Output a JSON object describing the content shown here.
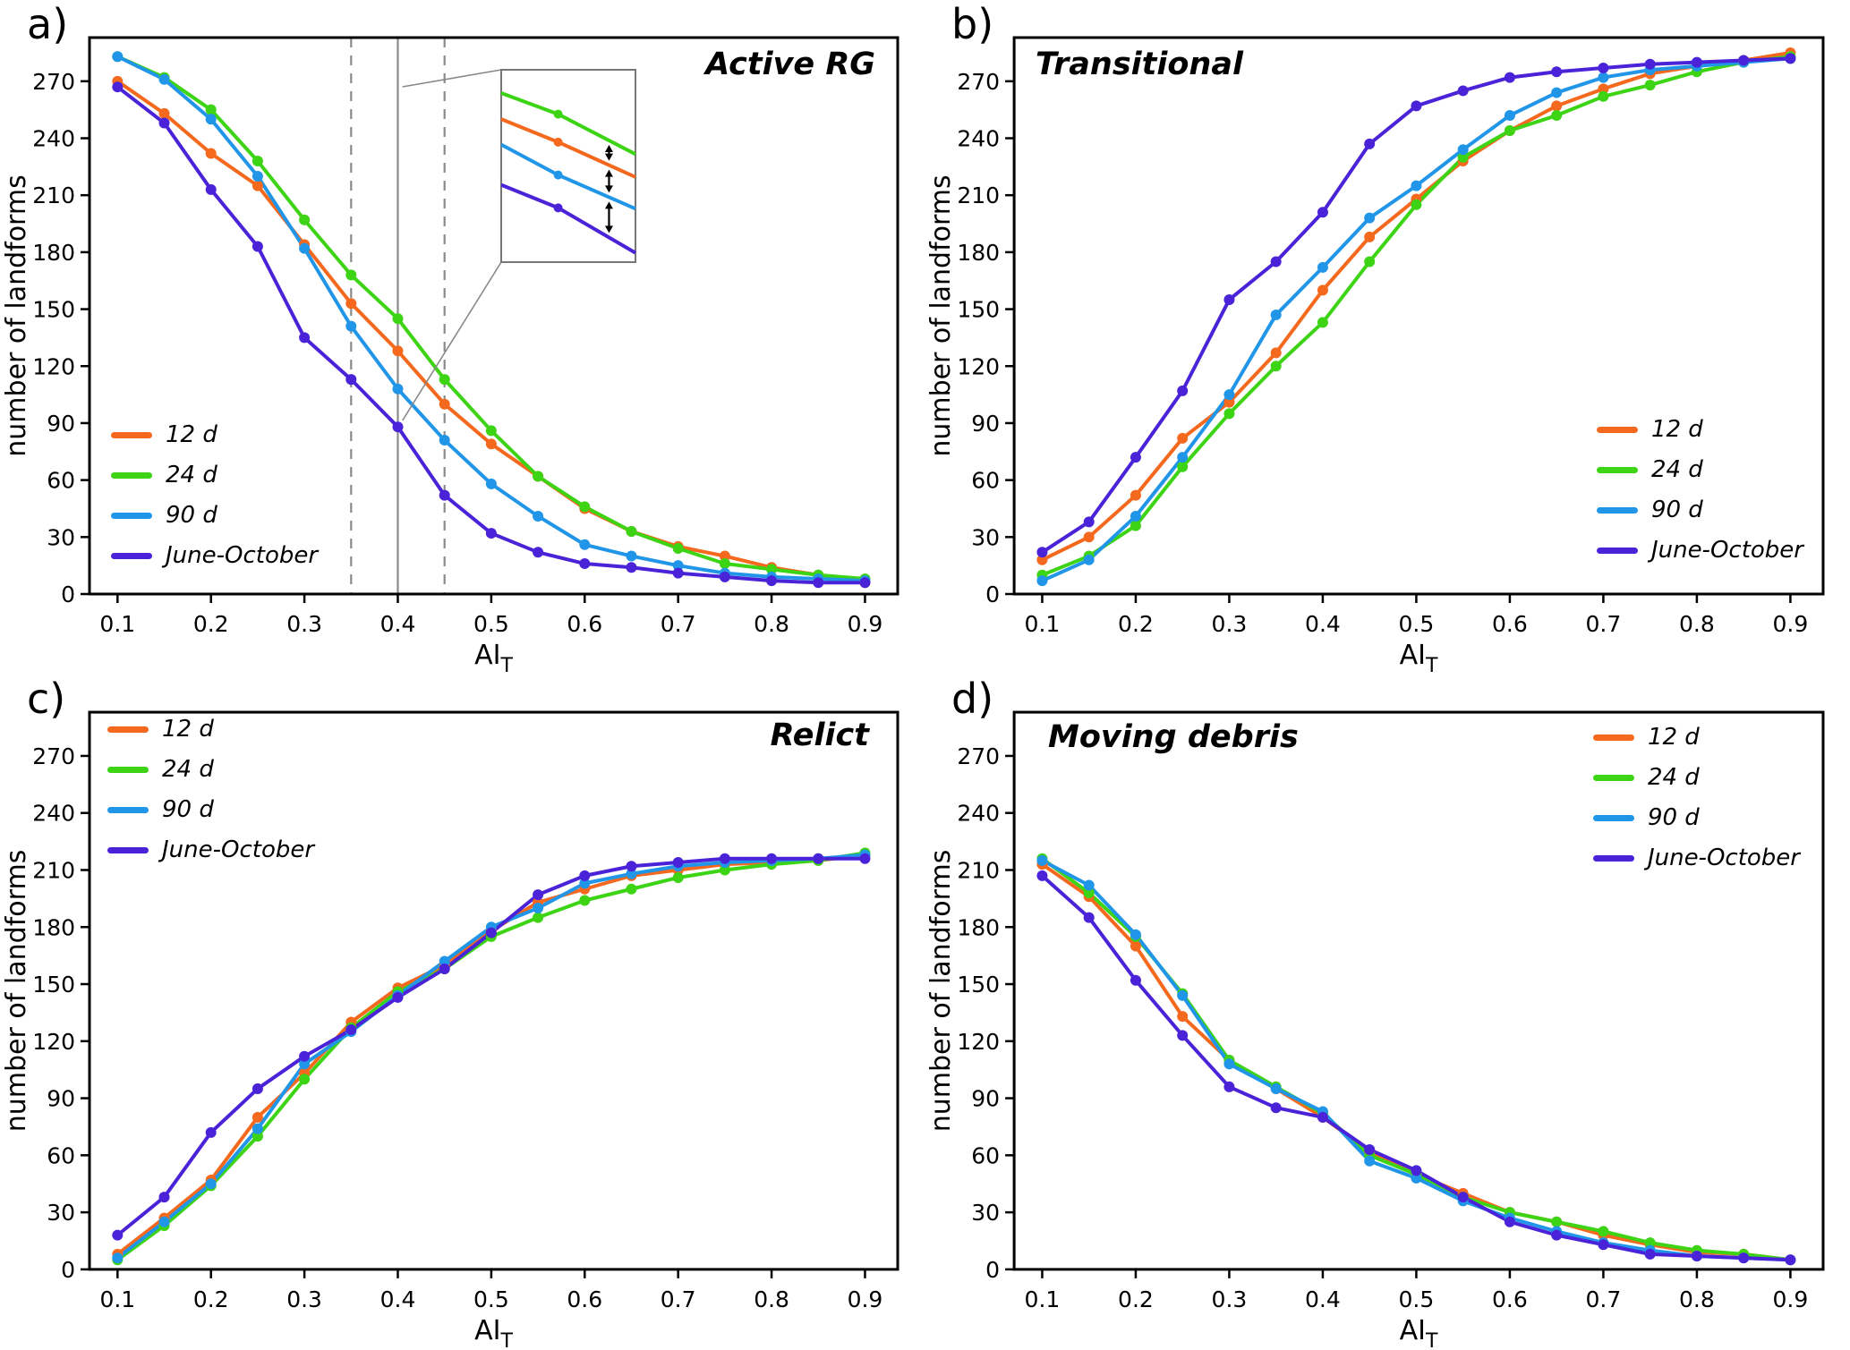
{
  "axes": {
    "ylabel": "number of landforms",
    "xlabel_base": "AI",
    "xlabel_sub": "T",
    "x_ticks": [
      0.1,
      0.2,
      0.3,
      0.4,
      0.5,
      0.6,
      0.7,
      0.8,
      0.9
    ],
    "y_ticks": [
      0,
      30,
      60,
      90,
      120,
      150,
      180,
      210,
      240,
      270
    ],
    "x_range": [
      0.07,
      0.935
    ],
    "y_range": [
      0,
      293
    ],
    "grid": false
  },
  "series_meta": [
    {
      "name": "12 d",
      "color": "#F4691E"
    },
    {
      "name": "24 d",
      "color": "#3CD415"
    },
    {
      "name": "90 d",
      "color": "#2196E8"
    },
    {
      "name": "June-October",
      "color": "#4A23D8"
    }
  ],
  "chart_data": [
    {
      "type": "line",
      "panel_label": "a)",
      "title": "Active RG",
      "title_position": "top-right",
      "legend_position": "bottom-left",
      "x": [
        0.1,
        0.15,
        0.2,
        0.25,
        0.3,
        0.35,
        0.4,
        0.45,
        0.5,
        0.55,
        0.6,
        0.65,
        0.7,
        0.75,
        0.8,
        0.85,
        0.9
      ],
      "series": [
        {
          "name": "12 d",
          "color": "#F4691E",
          "values": [
            270,
            253,
            232,
            215,
            184,
            153,
            128,
            100,
            79,
            62,
            45,
            33,
            25,
            20,
            14,
            10,
            6
          ]
        },
        {
          "name": "24 d",
          "color": "#3CD415",
          "values": [
            283,
            272,
            255,
            228,
            197,
            168,
            145,
            113,
            86,
            62,
            46,
            33,
            24,
            16,
            13,
            10,
            8
          ]
        },
        {
          "name": "90 d",
          "color": "#2196E8",
          "values": [
            283,
            271,
            250,
            220,
            182,
            141,
            108,
            81,
            58,
            41,
            26,
            20,
            15,
            11,
            9,
            8,
            7
          ]
        },
        {
          "name": "June-October",
          "color": "#4A23D8",
          "values": [
            267,
            248,
            213,
            183,
            135,
            113,
            88,
            52,
            32,
            22,
            16,
            14,
            11,
            9,
            7,
            6,
            6
          ]
        }
      ],
      "annotations": {
        "vlines": [
          {
            "x": 0.35,
            "style": "dashed"
          },
          {
            "x": 0.4,
            "style": "solid"
          },
          {
            "x": 0.45,
            "style": "dashed"
          }
        ],
        "inset": {
          "magnified_x_range": [
            0.372,
            0.438
          ],
          "magnified_y_range": [
            55,
            172
          ],
          "arrow_x": 0.425,
          "marker_x": 0.4
        }
      }
    },
    {
      "type": "line",
      "panel_label": "b)",
      "title": "Transitional",
      "title_position": "top-left",
      "legend_position": "bottom-right",
      "x": [
        0.1,
        0.15,
        0.2,
        0.25,
        0.3,
        0.35,
        0.4,
        0.45,
        0.5,
        0.55,
        0.6,
        0.65,
        0.7,
        0.75,
        0.8,
        0.85,
        0.9
      ],
      "series": [
        {
          "name": "12 d",
          "color": "#F4691E",
          "values": [
            18,
            30,
            52,
            82,
            101,
            127,
            160,
            188,
            208,
            228,
            244,
            257,
            266,
            274,
            278,
            281,
            285
          ]
        },
        {
          "name": "24 d",
          "color": "#3CD415",
          "values": [
            10,
            20,
            36,
            67,
            95,
            120,
            143,
            175,
            205,
            230,
            244,
            252,
            262,
            268,
            275,
            280,
            283
          ]
        },
        {
          "name": "90 d",
          "color": "#2196E8",
          "values": [
            7,
            18,
            41,
            72,
            105,
            147,
            172,
            198,
            215,
            234,
            252,
            264,
            272,
            276,
            278,
            280,
            282
          ]
        },
        {
          "name": "June-October",
          "color": "#4A23D8",
          "values": [
            22,
            38,
            72,
            107,
            155,
            175,
            201,
            237,
            257,
            265,
            272,
            275,
            277,
            279,
            280,
            281,
            282
          ]
        }
      ]
    },
    {
      "type": "line",
      "panel_label": "c)",
      "title": "Relict",
      "title_position": "top-right",
      "legend_position": "top-left",
      "x": [
        0.1,
        0.15,
        0.2,
        0.25,
        0.3,
        0.35,
        0.4,
        0.45,
        0.5,
        0.55,
        0.6,
        0.65,
        0.7,
        0.75,
        0.8,
        0.85,
        0.9
      ],
      "series": [
        {
          "name": "12 d",
          "color": "#F4691E",
          "values": [
            8,
            27,
            47,
            80,
            103,
            130,
            148,
            160,
            178,
            193,
            200,
            207,
            210,
            213,
            214,
            215,
            218
          ]
        },
        {
          "name": "24 d",
          "color": "#3CD415",
          "values": [
            5,
            23,
            44,
            70,
            100,
            127,
            146,
            158,
            175,
            185,
            194,
            200,
            206,
            210,
            213,
            215,
            219
          ]
        },
        {
          "name": "90 d",
          "color": "#2196E8",
          "values": [
            6,
            25,
            45,
            74,
            108,
            125,
            144,
            162,
            180,
            190,
            203,
            208,
            212,
            214,
            215,
            216,
            218
          ]
        },
        {
          "name": "June-October",
          "color": "#4A23D8",
          "values": [
            18,
            38,
            72,
            95,
            112,
            126,
            143,
            158,
            177,
            197,
            207,
            212,
            214,
            216,
            216,
            216,
            216
          ]
        }
      ]
    },
    {
      "type": "line",
      "panel_label": "d)",
      "title": "Moving debris",
      "title_position": "top-left",
      "legend_position": "top-right",
      "x": [
        0.1,
        0.15,
        0.2,
        0.25,
        0.3,
        0.35,
        0.4,
        0.45,
        0.5,
        0.55,
        0.6,
        0.65,
        0.7,
        0.75,
        0.8,
        0.85,
        0.9
      ],
      "series": [
        {
          "name": "12 d",
          "color": "#F4691E",
          "values": [
            213,
            196,
            170,
            133,
            110,
            95,
            80,
            62,
            50,
            40,
            30,
            25,
            18,
            13,
            9,
            8,
            5
          ]
        },
        {
          "name": "24 d",
          "color": "#3CD415",
          "values": [
            216,
            198,
            175,
            145,
            110,
            96,
            82,
            60,
            50,
            38,
            30,
            25,
            20,
            14,
            10,
            8,
            5
          ]
        },
        {
          "name": "90 d",
          "color": "#2196E8",
          "values": [
            215,
            202,
            176,
            144,
            108,
            95,
            83,
            57,
            48,
            36,
            27,
            20,
            14,
            10,
            7,
            6,
            5
          ]
        },
        {
          "name": "June-October",
          "color": "#4A23D8",
          "values": [
            207,
            185,
            152,
            123,
            96,
            85,
            80,
            63,
            52,
            38,
            25,
            18,
            13,
            8,
            7,
            6,
            5
          ]
        }
      ]
    }
  ]
}
